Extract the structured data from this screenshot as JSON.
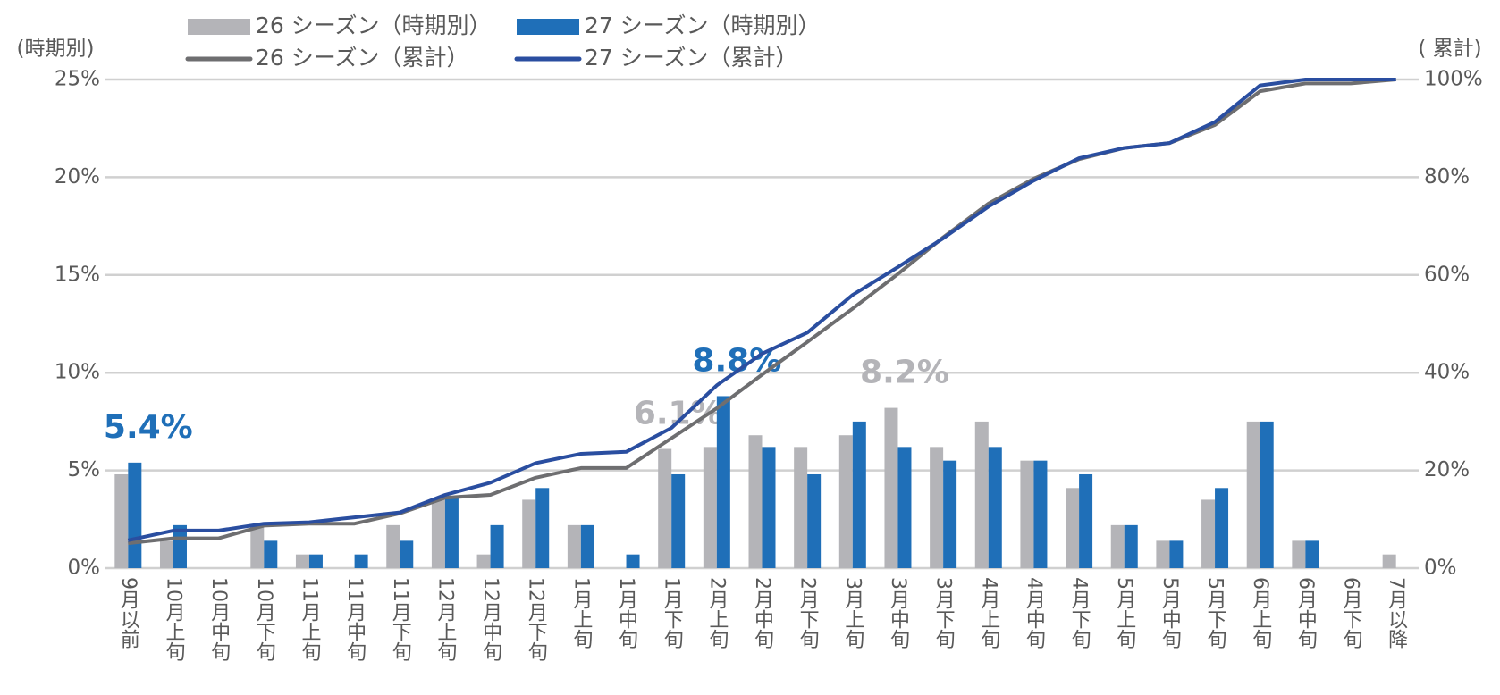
{
  "chart_data": {
    "type": "bar_line",
    "y_axis_label": "(時期別)",
    "y2_axis_label": "( 累計)",
    "categories": [
      "9月以前",
      "10月上旬",
      "10月中旬",
      "10月下旬",
      "11月上旬",
      "11月中旬",
      "11月下旬",
      "12月上旬",
      "12月中旬",
      "12月下旬",
      "1月上旬",
      "1月中旬",
      "1月下旬",
      "2月上旬",
      "2月中旬",
      "2月下旬",
      "3月上旬",
      "3月中旬",
      "3月下旬",
      "4月上旬",
      "4月中旬",
      "4月下旬",
      "5月上旬",
      "5月中旬",
      "5月下旬",
      "6月上旬",
      "6月中旬",
      "6月下旬",
      "7月以降"
    ],
    "ylim": [
      0,
      25
    ],
    "yticks": [
      {
        "value": 0,
        "label": "0%"
      },
      {
        "value": 5,
        "label": "5%"
      },
      {
        "value": 10,
        "label": "10%"
      },
      {
        "value": 15,
        "label": "15%"
      },
      {
        "value": 20,
        "label": "20%"
      },
      {
        "value": 25,
        "label": "25%"
      }
    ],
    "y2lim": [
      0,
      100
    ],
    "y2ticks": [
      {
        "value": 0,
        "label": "0%"
      },
      {
        "value": 20,
        "label": "20%"
      },
      {
        "value": 40,
        "label": "40%"
      },
      {
        "value": 60,
        "label": "60%"
      },
      {
        "value": 80,
        "label": "80%"
      },
      {
        "value": 100,
        "label": "100%"
      }
    ],
    "grid": true,
    "series": [
      {
        "name": "26 シーズン（時期別）",
        "type": "bar",
        "color": "#b4b4b8",
        "values": [
          4.8,
          1.4,
          0,
          2.2,
          0.7,
          0,
          2.2,
          3.5,
          0.7,
          3.5,
          2.2,
          0,
          6.1,
          6.2,
          6.8,
          6.2,
          6.8,
          8.2,
          6.2,
          7.5,
          5.5,
          4.1,
          2.2,
          1.4,
          3.5,
          7.5,
          1.4,
          0,
          0.7
        ],
        "value_labels": [
          null,
          null,
          null,
          null,
          null,
          null,
          null,
          null,
          null,
          null,
          null,
          null,
          "6.1%",
          null,
          null,
          null,
          null,
          "8.2%",
          null,
          null,
          null,
          null,
          null,
          null,
          null,
          null,
          null,
          null,
          null
        ]
      },
      {
        "name": "27 シーズン（時期別）",
        "type": "bar",
        "color": "#1f6fb8",
        "values": [
          5.4,
          2.2,
          0,
          1.4,
          0.7,
          0.7,
          1.4,
          3.6,
          2.2,
          4.1,
          2.2,
          0.7,
          4.8,
          8.8,
          6.2,
          4.8,
          7.5,
          6.2,
          5.5,
          6.2,
          5.5,
          4.8,
          2.2,
          1.4,
          4.1,
          7.5,
          1.4,
          0,
          0
        ],
        "value_labels": [
          "5.4%",
          null,
          null,
          null,
          null,
          null,
          null,
          null,
          null,
          null,
          null,
          null,
          null,
          "8.8%",
          null,
          null,
          null,
          null,
          null,
          null,
          null,
          null,
          null,
          null,
          null,
          null,
          null,
          null,
          null
        ]
      },
      {
        "name": "26 シーズン（累計）",
        "type": "line",
        "axis": "y2",
        "color": "#6e6e70",
        "values": [
          5.1,
          6.1,
          6.1,
          8.7,
          9.1,
          9.1,
          11.2,
          14.4,
          15.0,
          18.5,
          20.5,
          20.5,
          26.6,
          32.7,
          39.6,
          46.3,
          53.1,
          60.2,
          67.7,
          74.6,
          79.7,
          83.7,
          86.0,
          87.0,
          90.7,
          97.6,
          99.2,
          99.2,
          100
        ]
      },
      {
        "name": "27 シーズン（累計）",
        "type": "line",
        "axis": "y2",
        "color": "#2a4ea0",
        "values": [
          5.7,
          7.7,
          7.7,
          9.1,
          9.4,
          10.4,
          11.4,
          15.0,
          17.5,
          21.5,
          23.4,
          23.8,
          28.7,
          37.4,
          43.9,
          48.2,
          55.9,
          61.6,
          67.5,
          74.0,
          79.3,
          83.9,
          86.0,
          87.0,
          91.3,
          98.8,
          100,
          100,
          100
        ]
      }
    ]
  }
}
